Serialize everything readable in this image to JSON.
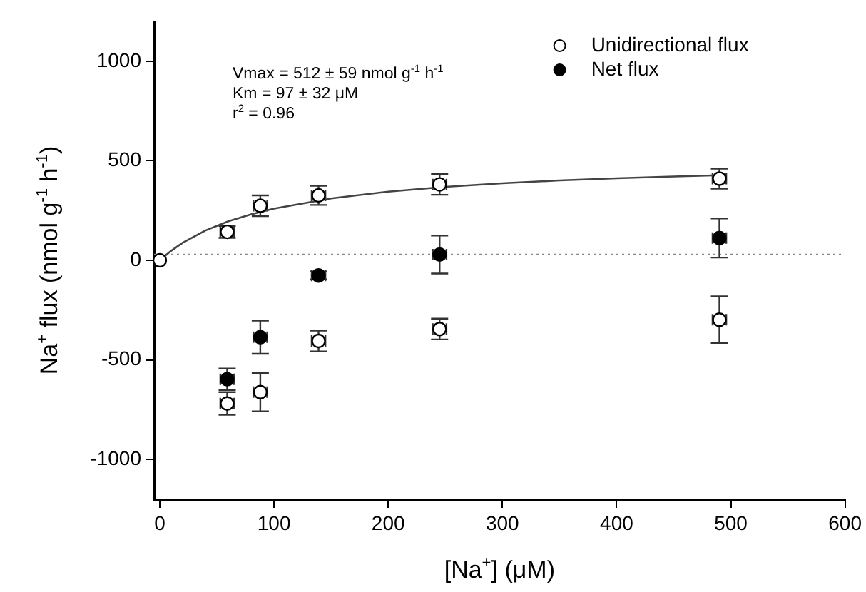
{
  "chart_data": {
    "type": "scatter",
    "xlabel": "[Na$^{+}$] (μM)",
    "ylabel": "Na$^{+}$ flux (nmol g$^{-1}$ h$^{-1}$)",
    "annotations": [
      "Vmax = 512 ± 59 nmol g$^{-1}$ h$^{-1}$",
      "Km = 97 ± 32 μM",
      "r$^{2}$ = 0.96"
    ],
    "series": [
      {
        "name": "Unidirectional flux",
        "color": "#ffffff",
        "x": [
          0,
          59,
          88,
          139,
          245,
          490,
          59,
          88,
          139,
          245,
          490
        ],
        "values": [
          0,
          143,
          274,
          326,
          381,
          410,
          -719,
          -662,
          -405,
          -345,
          -298
        ],
        "errors": [
          null,
          30,
          52,
          48,
          52,
          50,
          57,
          96,
          52,
          52,
          117
        ],
        "xerrors": [
          null,
          6,
          6,
          6,
          6,
          6,
          6,
          6,
          6,
          6,
          6
        ]
      },
      {
        "name": "Net flux",
        "color": "#000000",
        "x": [
          59,
          88,
          139,
          245,
          490
        ],
        "values": [
          -597,
          -386,
          -76,
          29,
          112
        ],
        "errors": [
          54,
          83,
          20,
          95,
          98
        ],
        "xerrors": [
          6,
          6,
          6,
          6,
          6
        ]
      },
      {
        "type": "line",
        "color": "#444444",
        "marker": "none",
        "x": [
          0,
          10,
          20,
          40,
          60,
          80,
          100,
          150,
          200,
          250,
          300,
          350,
          400,
          450,
          490
        ],
        "values": [
          0,
          48,
          88,
          150,
          196,
          231,
          260,
          311,
          345,
          369,
          387,
          401,
          412,
          421,
          427
        ]
      }
    ],
    "ref_lines": [
      {
        "axis": "y",
        "value": 30,
        "color": "#888888",
        "line_style": "dotted"
      }
    ],
    "xlim": [
      -5,
      600
    ],
    "xticks": [
      0,
      100,
      200,
      300,
      400,
      500,
      600
    ],
    "ylim": [
      -1200,
      1200
    ],
    "yticks": [
      -1000,
      -500,
      0,
      500,
      1000
    ],
    "grid": false,
    "legend": "top right",
    "marker": "circle"
  }
}
